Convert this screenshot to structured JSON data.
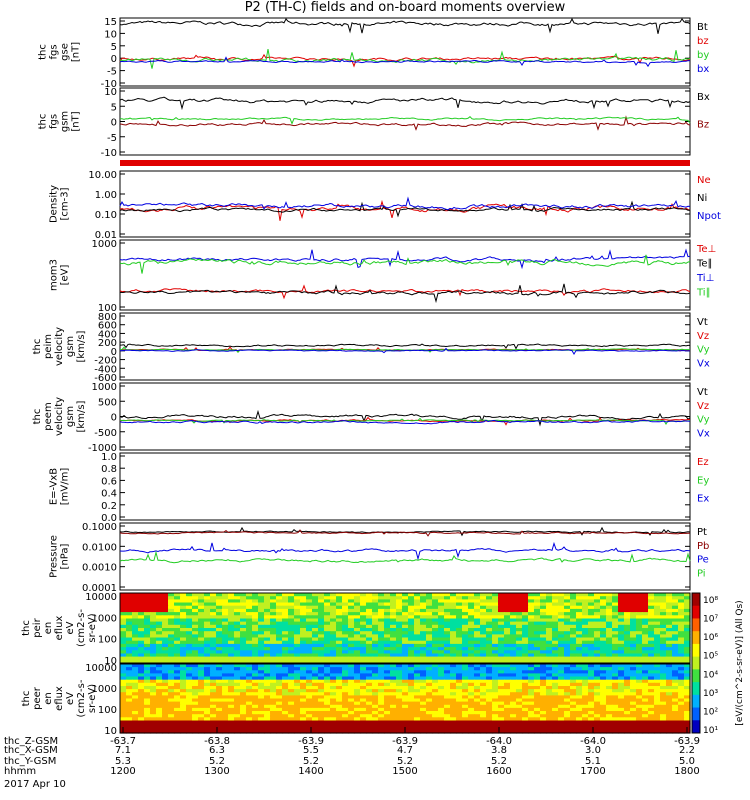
{
  "title": "P2 (TH-C) fields and on-board moments overview",
  "colors": {
    "black": "#000000",
    "red": "#e00000",
    "green": "#22cc22",
    "blue": "#0000e0",
    "darkred": "#8b0000"
  },
  "chart_data": [
    {
      "type": "line",
      "id": "fgs-mag",
      "ylabel": [
        "thc",
        "fgs",
        "gse",
        "[nT]"
      ],
      "yticks": [
        "15",
        "10",
        "5",
        "0",
        "-5",
        "-10"
      ],
      "ylim": [
        -10,
        15
      ],
      "series": [
        {
          "name": "Bt",
          "color": "black",
          "base": 13,
          "amp": 2
        },
        {
          "name": "bz",
          "color": "red",
          "base": 0,
          "amp": 1.5
        },
        {
          "name": "by",
          "color": "green",
          "base": -0.5,
          "amp": 2
        },
        {
          "name": "bx",
          "color": "blue",
          "base": -1,
          "amp": 1
        }
      ]
    },
    {
      "type": "line",
      "id": "fgs-gsm",
      "ylabel": [
        "thc",
        "fgs",
        "gsm",
        "[nT]"
      ],
      "yticks": [
        "10",
        "5",
        "0",
        "-5",
        "-10"
      ],
      "ylim": [
        -13,
        13
      ],
      "series": [
        {
          "name": "Bx",
          "color": "black",
          "base": 8,
          "amp": 2
        },
        {
          "name": "Bz",
          "color": "darkred",
          "base": -1,
          "amp": 1.5
        },
        {
          "name": "",
          "color": "green",
          "base": 1,
          "amp": 1
        }
      ]
    },
    {
      "type": "line",
      "id": "density",
      "ylabel": [
        "Density",
        "[cm-3]"
      ],
      "yticks": [
        "10.00",
        "1.00",
        "0.10",
        "0.01"
      ],
      "ylim": [
        -2,
        1
      ],
      "log": true,
      "series": [
        {
          "name": "Ne",
          "color": "red",
          "base": -0.7,
          "amp": 0.3
        },
        {
          "name": "Ni",
          "color": "black",
          "base": -0.75,
          "amp": 0.2
        },
        {
          "name": "Npot",
          "color": "blue",
          "base": -0.6,
          "amp": 0.25
        }
      ]
    },
    {
      "type": "line",
      "id": "temperature",
      "ylabel": [
        "mom3",
        "[eV]"
      ],
      "yticks": [
        "1000",
        "100"
      ],
      "ylim": [
        1.4,
        3.6
      ],
      "log": true,
      "series": [
        {
          "name": "Te⊥",
          "color": "red",
          "base": 2.0,
          "amp": 0.15
        },
        {
          "name": "Te∥",
          "color": "black",
          "base": 1.95,
          "amp": 0.15
        },
        {
          "name": "Ti⊥",
          "color": "blue",
          "base": 3.0,
          "amp": 0.15
        },
        {
          "name": "Ti∥",
          "color": "green",
          "base": 2.9,
          "amp": 0.2
        }
      ]
    },
    {
      "type": "line",
      "id": "peim-velocity",
      "ylabel": [
        "thc",
        "peim",
        "velocity",
        "gsm",
        "[km/s]"
      ],
      "yticks": [
        "800",
        "600",
        "400",
        "200",
        "0",
        "-200",
        "-400",
        "-600"
      ],
      "ylim": [
        -700,
        850
      ],
      "series": [
        {
          "name": "Vt",
          "color": "black",
          "base": 100,
          "amp": 60
        },
        {
          "name": "Vz",
          "color": "red",
          "base": 0,
          "amp": 30
        },
        {
          "name": "Vy",
          "color": "green",
          "base": 0,
          "amp": 30
        },
        {
          "name": "Vx",
          "color": "blue",
          "base": -20,
          "amp": 40
        }
      ]
    },
    {
      "type": "line",
      "id": "peem-velocity",
      "ylabel": [
        "thc",
        "peem",
        "velocity",
        "gsm",
        "[km/s]"
      ],
      "yticks": [
        "1000",
        "500",
        "0",
        "-500",
        "-1000"
      ],
      "ylim": [
        -1100,
        1400
      ],
      "series": [
        {
          "name": "Vt",
          "color": "black",
          "base": 150,
          "amp": 150
        },
        {
          "name": "Vz",
          "color": "red",
          "base": 0,
          "amp": 80
        },
        {
          "name": "Vy",
          "color": "green",
          "base": 0,
          "amp": 60
        },
        {
          "name": "Vx",
          "color": "blue",
          "base": -50,
          "amp": 100
        }
      ]
    },
    {
      "type": "line",
      "id": "e-field",
      "ylabel": [
        "E=-VxB",
        "[mV/m]"
      ],
      "yticks": [
        "1.0",
        "0.8",
        "0.6",
        "0.4",
        "0.2",
        "0.0"
      ],
      "ylim": [
        0,
        1
      ],
      "series": [
        {
          "name": "Ez",
          "color": "red"
        },
        {
          "name": "Ey",
          "color": "green"
        },
        {
          "name": "Ex",
          "color": "blue"
        }
      ]
    },
    {
      "type": "line",
      "id": "pressure",
      "ylabel": [
        "Pressure",
        "[nPa]"
      ],
      "yticks": [
        "0.1000",
        "0.0100",
        "0.0010",
        "0.0001"
      ],
      "ylim": [
        -4,
        -0.6
      ],
      "log": true,
      "series": [
        {
          "name": "Pt",
          "color": "black",
          "base": -1.05,
          "amp": 0.1
        },
        {
          "name": "Pb",
          "color": "darkred",
          "base": -1.1,
          "amp": 0.1
        },
        {
          "name": "Pe",
          "color": "blue",
          "base": -2.0,
          "amp": 0.2
        },
        {
          "name": "Pi",
          "color": "green",
          "base": -2.5,
          "amp": 0.2
        }
      ]
    },
    {
      "type": "heatmap",
      "id": "peir-spectrogram",
      "ylabel": [
        "thc",
        "peir",
        "en",
        "eflux",
        "eV",
        "(cm2-s-",
        "sr-eV)"
      ],
      "yticks": [
        "10000",
        "1000",
        "100",
        "10"
      ]
    },
    {
      "type": "heatmap",
      "id": "peer-spectrogram",
      "ylabel": [
        "thc",
        "peer",
        "en",
        "eflux",
        "eV",
        "(cm2-s-",
        "sr-eV)"
      ],
      "yticks": [
        "10000",
        "1000",
        "100",
        "10"
      ]
    }
  ],
  "colorbar": {
    "label": "[eV/(cm^2-s-sr-eV)] (All Qs)",
    "ticks": [
      "10⁸",
      "10⁷",
      "10⁶",
      "10⁵",
      "10⁴",
      "10³",
      "10²",
      "10¹"
    ]
  },
  "xaxis": {
    "rows": [
      {
        "label": "thc_X-GSM",
        "values": [
          "7.1",
          "6.3",
          "5.5",
          "4.7",
          "3.8",
          "3.0",
          "2.2"
        ]
      },
      {
        "label": "thc_Y-GSM",
        "values": [
          "5.3",
          "5.2",
          "5.2",
          "5.2",
          "5.2",
          "5.1",
          "5.0"
        ]
      },
      {
        "label": "thc_Z-GSM",
        "values": [
          "-63.7",
          "-63.8",
          "-63.9",
          "-63.9",
          "-64.0",
          "-64.0",
          "-63.9"
        ]
      },
      {
        "label": "hhmm",
        "values": [
          "1200",
          "1300",
          "1400",
          "1500",
          "1600",
          "1700",
          "1800"
        ]
      }
    ],
    "date": "2017 Apr 10"
  }
}
